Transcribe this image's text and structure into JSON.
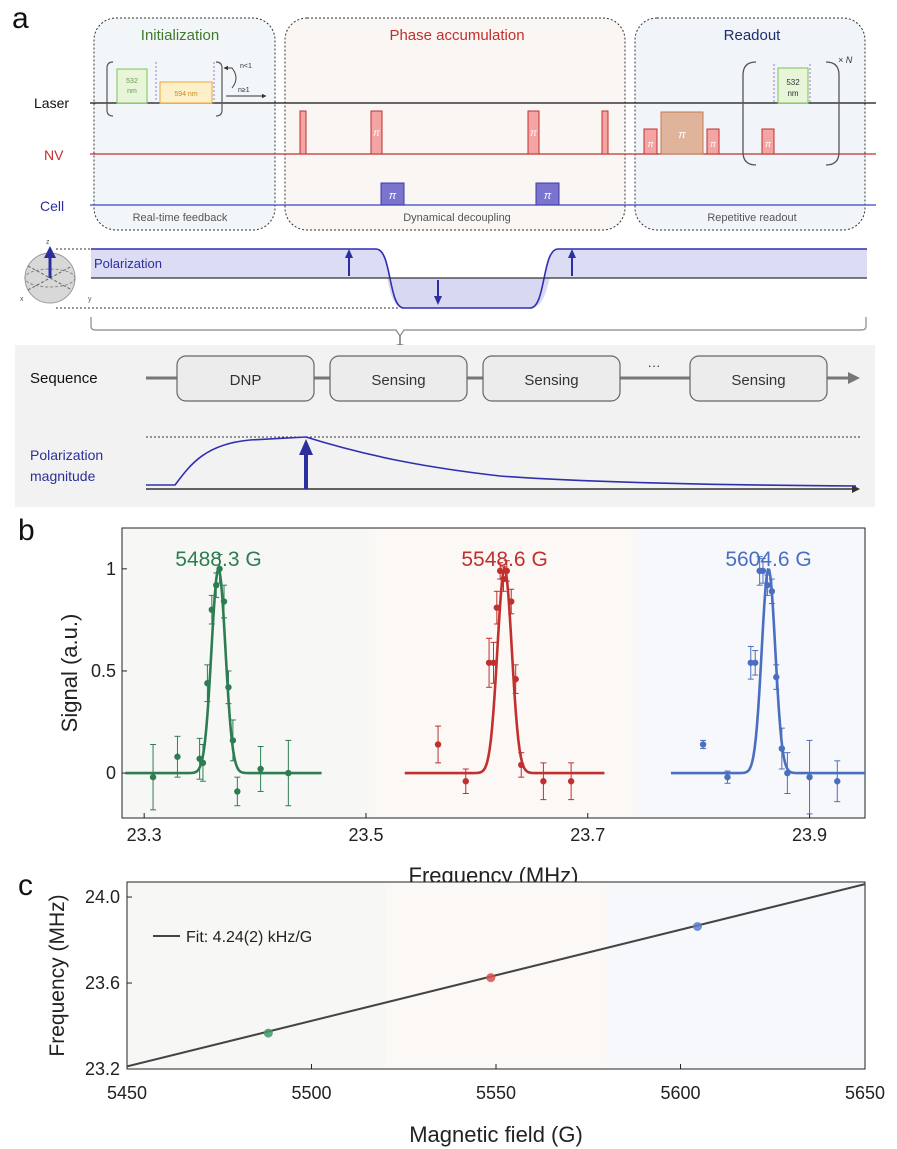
{
  "panel_a": {
    "letter": "a",
    "rows": {
      "laser": "Laser",
      "nv": "NV",
      "cell": "Cell"
    },
    "initialization": {
      "title": "Initialization",
      "footer": "Real-time feedback",
      "green_pulse": [
        "532",
        "nm"
      ],
      "orange_pulse": "594 nm",
      "branch_low": "n<1",
      "branch_high": "n≥1"
    },
    "phase": {
      "title": "Phase accumulation",
      "footer": "Dynamical decoupling",
      "pi": "π"
    },
    "readout": {
      "title": "Readout",
      "footer": "Repetitive readout",
      "green_pulse": [
        "532",
        "nm"
      ],
      "repeat": "× N",
      "pi": "π"
    },
    "polarization": {
      "label": "Polarization",
      "axes": [
        "z",
        "x",
        "y"
      ]
    },
    "sequence": {
      "label": "Sequence",
      "blocks": [
        "DNP",
        "Sensing",
        "Sensing",
        "Sensing"
      ],
      "ellipsis": "···"
    },
    "magnitude": {
      "label_line1": "Polarization",
      "label_line2": "magnitude"
    }
  },
  "colors": {
    "green": "#2e7d52",
    "red": "#c0302e",
    "blue": "#4a6fc0",
    "navy": "#2b2f9a",
    "init_title": "#3e7a2c",
    "readout_title": "#1f2f6b"
  },
  "panel_b": {
    "letter": "b",
    "chart_data": {
      "type": "scatter",
      "xlabel": "Frequency (MHz)",
      "ylabel": "Signal (a.u.)",
      "xlim": [
        23.28,
        23.95
      ],
      "ylim": [
        -0.22,
        1.2
      ],
      "xticks": [
        "23.3",
        "23.5",
        "23.7",
        "23.9"
      ],
      "yticks": [
        "0",
        "0.5",
        "1"
      ],
      "series": [
        {
          "name": "5488.3 G",
          "color": "#2e7d52",
          "fit_center": 23.367,
          "fit_sigma": 0.0063,
          "fit_range": [
            23.283,
            23.46
          ],
          "points": [
            {
              "x": 23.308,
              "y": -0.02,
              "err": 0.16
            },
            {
              "x": 23.33,
              "y": 0.08,
              "err": 0.1
            },
            {
              "x": 23.35,
              "y": 0.07,
              "err": 0.1
            },
            {
              "x": 23.353,
              "y": 0.05,
              "err": 0.09
            },
            {
              "x": 23.357,
              "y": 0.44,
              "err": 0.09
            },
            {
              "x": 23.361,
              "y": 0.8,
              "err": 0.07
            },
            {
              "x": 23.365,
              "y": 0.92,
              "err": 0.06
            },
            {
              "x": 23.368,
              "y": 1.0,
              "err": 0.07
            },
            {
              "x": 23.372,
              "y": 0.84,
              "err": 0.08
            },
            {
              "x": 23.376,
              "y": 0.42,
              "err": 0.08
            },
            {
              "x": 23.38,
              "y": 0.16,
              "err": 0.1
            },
            {
              "x": 23.384,
              "y": -0.09,
              "err": 0.07
            },
            {
              "x": 23.405,
              "y": 0.02,
              "err": 0.11
            },
            {
              "x": 23.43,
              "y": 0.0,
              "err": 0.16
            }
          ]
        },
        {
          "name": "5548.6 G",
          "color": "#c0302e",
          "fit_center": 23.625,
          "fit_sigma": 0.0065,
          "fit_range": [
            23.535,
            23.715
          ],
          "points": [
            {
              "x": 23.565,
              "y": 0.14,
              "err": 0.09
            },
            {
              "x": 23.59,
              "y": -0.04,
              "err": 0.06
            },
            {
              "x": 23.611,
              "y": 0.54,
              "err": 0.12
            },
            {
              "x": 23.615,
              "y": 0.54,
              "err": 0.1
            },
            {
              "x": 23.618,
              "y": 0.81,
              "err": 0.08
            },
            {
              "x": 23.621,
              "y": 0.99,
              "err": 0.04
            },
            {
              "x": 23.624,
              "y": 0.95,
              "err": 0.06
            },
            {
              "x": 23.627,
              "y": 0.99,
              "err": 0.05
            },
            {
              "x": 23.631,
              "y": 0.84,
              "err": 0.06
            },
            {
              "x": 23.635,
              "y": 0.46,
              "err": 0.07
            },
            {
              "x": 23.64,
              "y": 0.04,
              "err": 0.06
            },
            {
              "x": 23.66,
              "y": -0.04,
              "err": 0.09
            },
            {
              "x": 23.685,
              "y": -0.04,
              "err": 0.09
            }
          ]
        },
        {
          "name": "5604.6 G",
          "color": "#4a6fc0",
          "fit_center": 23.863,
          "fit_sigma": 0.0061,
          "fit_range": [
            23.775,
            23.95
          ],
          "points": [
            {
              "x": 23.804,
              "y": 0.14,
              "err": 0.02
            },
            {
              "x": 23.826,
              "y": -0.02,
              "err": 0.03
            },
            {
              "x": 23.847,
              "y": 0.54,
              "err": 0.08
            },
            {
              "x": 23.851,
              "y": 0.54,
              "err": 0.06
            },
            {
              "x": 23.855,
              "y": 0.99,
              "err": 0.07
            },
            {
              "x": 23.858,
              "y": 0.99,
              "err": 0.06
            },
            {
              "x": 23.862,
              "y": 0.92,
              "err": 0.05
            },
            {
              "x": 23.866,
              "y": 0.89,
              "err": 0.06
            },
            {
              "x": 23.87,
              "y": 0.47,
              "err": 0.06
            },
            {
              "x": 23.875,
              "y": 0.12,
              "err": 0.1
            },
            {
              "x": 23.88,
              "y": 0.0,
              "err": 0.1
            },
            {
              "x": 23.9,
              "y": -0.02,
              "err": 0.18
            },
            {
              "x": 23.925,
              "y": -0.04,
              "err": 0.1
            }
          ]
        }
      ]
    }
  },
  "panel_c": {
    "letter": "c",
    "chart_data": {
      "type": "scatter",
      "xlabel": "Magnetic field (G)",
      "ylabel": "Frequency (MHz)",
      "xlim": [
        5450,
        5650
      ],
      "ylim": [
        23.2,
        24.07
      ],
      "xticks": [
        "5450",
        "5500",
        "5550",
        "5600",
        "5650"
      ],
      "yticks": [
        "23.2",
        "23.6",
        "24.0"
      ],
      "legend": "Fit: 4.24(2) kHz/G",
      "legend_position": "top-left",
      "fit_line": {
        "x": [
          5450,
          5650
        ],
        "y": [
          23.212,
          24.06
        ]
      },
      "points": [
        {
          "x": 5488.3,
          "y": 23.367,
          "color": "#3f9a6a"
        },
        {
          "x": 5548.6,
          "y": 23.625,
          "color": "#d9524c"
        },
        {
          "x": 5604.6,
          "y": 23.863,
          "color": "#5a80d0"
        }
      ]
    }
  }
}
